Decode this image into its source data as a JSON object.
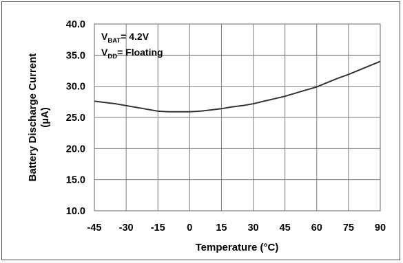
{
  "chart_data": {
    "type": "line",
    "xlabel": "Temperature (°C)",
    "ylabel_line1": "Battery Discharge Current",
    "ylabel_line2": "(µA)",
    "xlim": [
      -45,
      90
    ],
    "ylim": [
      10.0,
      40.0
    ],
    "x_ticks": [
      -45,
      -30,
      -15,
      0,
      15,
      30,
      45,
      60,
      75,
      90
    ],
    "x_tick_labels": [
      "-45",
      "-30",
      "-15",
      "0",
      "15",
      "30",
      "45",
      "60",
      "75",
      "90"
    ],
    "y_ticks": [
      10.0,
      15.0,
      20.0,
      25.0,
      30.0,
      35.0,
      40.0
    ],
    "y_tick_labels": [
      "10.0",
      "15.0",
      "20.0",
      "25.0",
      "30.0",
      "35.0",
      "40.0"
    ],
    "grid": true,
    "line_color": "#333333",
    "annotations": [
      {
        "main": "V",
        "sub": "BAT",
        "rest": "= 4.2V"
      },
      {
        "main": "V",
        "sub": "DD",
        "rest": "= Floating"
      }
    ],
    "series": [
      {
        "x": [
          -45,
          -40,
          -35,
          -30,
          -25,
          -20,
          -15,
          -10,
          -5,
          0,
          5,
          10,
          15,
          20,
          25,
          30,
          35,
          40,
          45,
          50,
          55,
          60,
          65,
          70,
          75,
          80,
          85,
          90
        ],
        "values": [
          27.6,
          27.4,
          27.2,
          26.9,
          26.6,
          26.3,
          26.0,
          25.9,
          25.9,
          25.9,
          26.0,
          26.2,
          26.4,
          26.7,
          26.9,
          27.2,
          27.6,
          28.0,
          28.4,
          28.9,
          29.4,
          29.9,
          30.6,
          31.3,
          31.9,
          32.6,
          33.3,
          34.0
        ]
      }
    ]
  }
}
